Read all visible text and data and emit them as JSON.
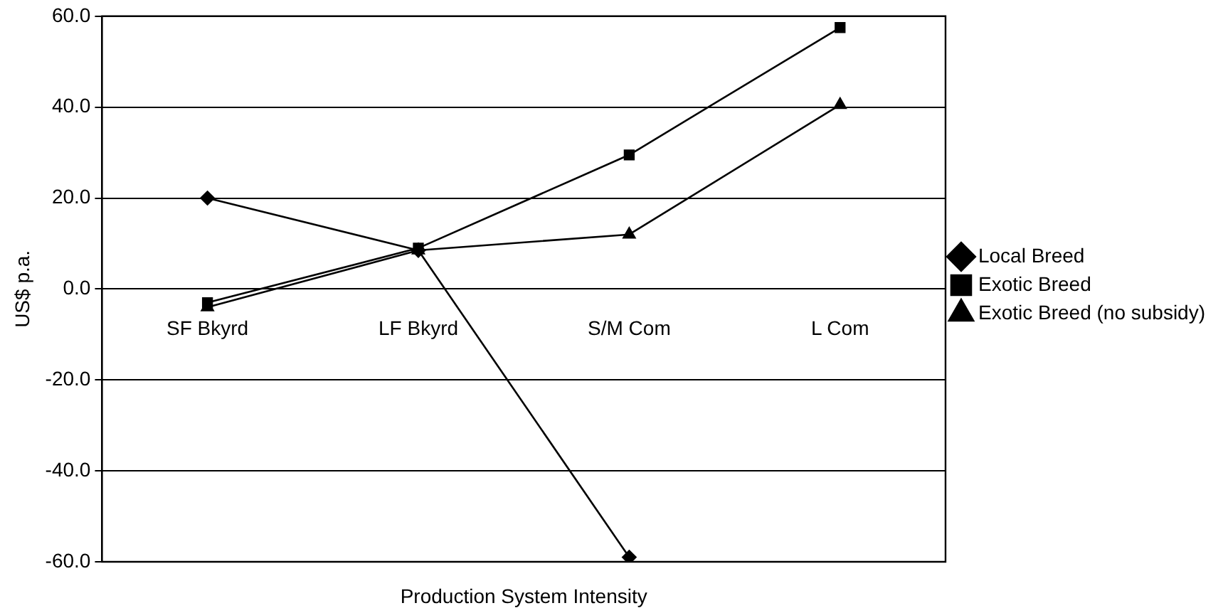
{
  "chart_data": {
    "type": "line",
    "xlabel": "Production System Intensity",
    "ylabel": "US$ p.a.",
    "categories": [
      "SF Bkyrd",
      "LF Bkyrd",
      "S/M Com",
      "L Com"
    ],
    "series": [
      {
        "name": "Local Breed",
        "color": "#000000",
        "marker": "diamond",
        "values": [
          20,
          8.5,
          -59,
          null
        ]
      },
      {
        "name": "Exotic Breed",
        "color": "#000000",
        "marker": "square",
        "values": [
          -3,
          9,
          29.5,
          57.5
        ]
      },
      {
        "name": "Exotic Breed (no subsidy)",
        "color": "#000000",
        "marker": "triangle",
        "values": [
          -4,
          8.5,
          12,
          40.5
        ]
      }
    ],
    "ylim": [
      -60,
      60
    ],
    "yticks": [
      {
        "value": -60,
        "label": "-60.0"
      },
      {
        "value": -40,
        "label": "-40.0"
      },
      {
        "value": -20,
        "label": "-20.0"
      },
      {
        "value": 0,
        "label": "0.0"
      },
      {
        "value": 20,
        "label": "20.0"
      },
      {
        "value": 40,
        "label": "40.0"
      },
      {
        "value": 60,
        "label": "60.0"
      }
    ],
    "grid": "y",
    "legend": "right",
    "line_style": "solid"
  }
}
